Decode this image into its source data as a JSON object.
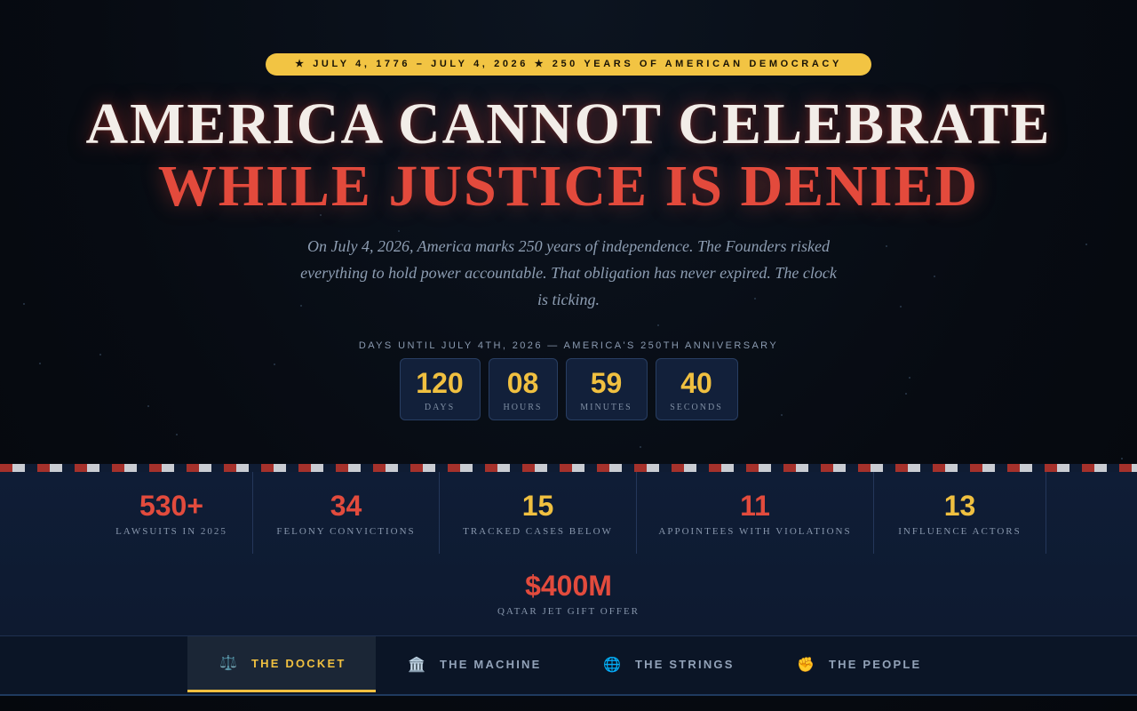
{
  "hero": {
    "badge": "★ JULY 4, 1776 – JULY 4, 2026 ★ 250 YEARS OF AMERICAN DEMOCRACY",
    "title_line1": "AMERICA CANNOT CELEBRATE",
    "title_line2": "WHILE JUSTICE IS DENIED",
    "subtitle": "On July 4, 2026, America marks 250 years of independence. The Founders risked everything to hold power accountable. That obligation has never expired. The clock is ticking."
  },
  "countdown": {
    "label": "DAYS UNTIL JULY 4TH, 2026 — AMERICA'S 250TH ANNIVERSARY",
    "units": [
      {
        "value": "120",
        "label": "DAYS"
      },
      {
        "value": "08",
        "label": "HOURS"
      },
      {
        "value": "59",
        "label": "MINUTES"
      },
      {
        "value": "40",
        "label": "SECONDS"
      }
    ]
  },
  "stats": [
    {
      "value": "530+",
      "label": "LAWSUITS IN 2025",
      "color": "#e24b3d"
    },
    {
      "value": "34",
      "label": "FELONY CONVICTIONS",
      "color": "#e24b3d"
    },
    {
      "value": "15",
      "label": "TRACKED CASES BELOW",
      "color": "#f0c040"
    },
    {
      "value": "11",
      "label": "APPOINTEES WITH VIOLATIONS",
      "color": "#e24b3d"
    },
    {
      "value": "13",
      "label": "INFLUENCE ACTORS",
      "color": "#f0c040"
    },
    {
      "value": "$400M",
      "label": "QATAR JET GIFT OFFER",
      "color": "#e24b3d"
    }
  ],
  "nav": {
    "tabs": [
      {
        "icon": "⚖️",
        "icon_name": "scales-icon",
        "label": "THE DOCKET",
        "active": true
      },
      {
        "icon": "🏛️",
        "icon_name": "building-icon",
        "label": "THE MACHINE",
        "active": false
      },
      {
        "icon": "🌐",
        "icon_name": "globe-icon",
        "label": "THE STRINGS",
        "active": false
      },
      {
        "icon": "✊",
        "icon_name": "fist-icon",
        "label": "THE PEOPLE",
        "active": false
      }
    ]
  },
  "colors": {
    "accent_gold": "#f0c040",
    "accent_red": "#e24b3d",
    "background": "#070b12"
  }
}
